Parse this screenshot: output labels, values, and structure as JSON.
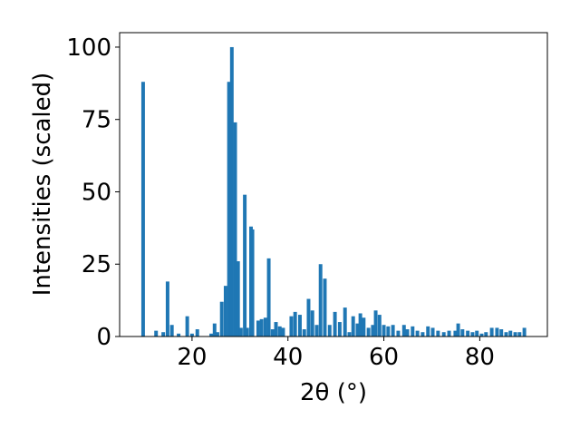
{
  "chart_data": {
    "type": "bar",
    "x_label": "2θ (°)",
    "y_label": "Intensities (scaled)",
    "color": "#1f77b4",
    "x": [
      9.8,
      12.5,
      14,
      14.9,
      15.8,
      17.2,
      19,
      20,
      21.1,
      24,
      24.7,
      25.3,
      26.2,
      27,
      27.7,
      28.3,
      29,
      29.6,
      30.2,
      31,
      31.5,
      32.3,
      32.6,
      33.8,
      34.5,
      35.3,
      36,
      36.8,
      37.5,
      38.3,
      39,
      40.7,
      41.5,
      42.5,
      43.4,
      44.3,
      45.1,
      46,
      46.8,
      47.7,
      48.7,
      49.8,
      50.8,
      51.9,
      52.8,
      53.6,
      54.5,
      55.1,
      55.8,
      56.8,
      57.7,
      58.3,
      59.1,
      60,
      60.9,
      61.9,
      63,
      64.2,
      64.9,
      66,
      67,
      68.1,
      69.2,
      70.2,
      71.3,
      72.5,
      73.6,
      74.9,
      75.5,
      76.4,
      77.5,
      78.5,
      79.4,
      80.4,
      81.3,
      82.5,
      83.6,
      84.5,
      85.5,
      86.4,
      87.4,
      88.3,
      89.3
    ],
    "values": [
      88,
      2,
      1.5,
      19,
      4,
      1,
      7,
      1,
      2.5,
      1,
      4.5,
      1.5,
      12,
      17.5,
      88,
      100,
      74,
      26,
      3,
      49,
      3,
      38,
      37,
      5.5,
      6,
      6.5,
      27,
      2.5,
      5,
      3.5,
      3,
      7,
      8.5,
      7.5,
      2.5,
      13,
      9,
      4,
      25,
      20,
      4,
      8.5,
      5,
      10,
      1.5,
      7,
      4.5,
      8,
      6.5,
      3,
      4,
      9,
      7.5,
      4,
      3.5,
      4,
      2,
      4,
      2.5,
      3.5,
      2,
      1.5,
      3.5,
      3,
      2,
      1.5,
      2,
      2,
      4.5,
      2.5,
      2,
      1.5,
      2,
      1,
      1.5,
      3,
      3,
      2.5,
      1.5,
      2,
      1.5,
      1.5,
      3
    ],
    "xlim": [
      4.9,
      94.1
    ],
    "ylim": [
      0,
      105
    ],
    "xticks": [
      20,
      40,
      60,
      80
    ],
    "yticks": [
      0,
      25,
      50,
      75,
      100
    ]
  }
}
